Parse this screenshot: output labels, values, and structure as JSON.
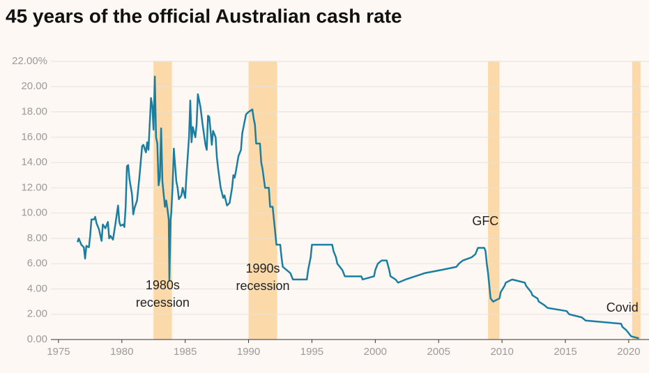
{
  "chart_data": {
    "type": "line",
    "title": "45 years of the official Australian cash rate",
    "color": "#1b7ea1",
    "band_color": "#fbd9a9",
    "grid": true,
    "xlim": [
      1974.4,
      2021.6
    ],
    "ylim": [
      0,
      22
    ],
    "xticks": [
      1975,
      1980,
      1985,
      1990,
      1995,
      2000,
      2005,
      2010,
      2015,
      2020
    ],
    "yticks": [
      {
        "value": 0,
        "label": "0.00"
      },
      {
        "value": 2,
        "label": "2.00"
      },
      {
        "value": 4,
        "label": "4.00"
      },
      {
        "value": 6,
        "label": "6.00"
      },
      {
        "value": 8,
        "label": "8.00"
      },
      {
        "value": 10,
        "label": "10.00"
      },
      {
        "value": 12,
        "label": "12.00"
      },
      {
        "value": 14,
        "label": "14.00"
      },
      {
        "value": 16,
        "label": "16.00"
      },
      {
        "value": 18,
        "label": "18.00"
      },
      {
        "value": 20,
        "label": "20.00"
      },
      {
        "value": 22,
        "label": "22.00%"
      }
    ],
    "shaded_periods": [
      {
        "start": 1982.5,
        "end": 1983.95,
        "label": [
          "1980s",
          "recession"
        ]
      },
      {
        "start": 1990.0,
        "end": 1992.25,
        "label": [
          "1990s",
          "recession"
        ]
      },
      {
        "start": 2008.9,
        "end": 2009.8,
        "label": [
          "GFC"
        ]
      },
      {
        "start": 2020.27,
        "end": 2020.93,
        "label": [
          "Covid"
        ]
      }
    ],
    "x": [
      1976.5,
      1976.6,
      1976.8,
      1977.0,
      1977.1,
      1977.2,
      1977.4,
      1977.5,
      1977.6,
      1977.8,
      1977.9,
      1978.0,
      1978.2,
      1978.4,
      1978.5,
      1978.7,
      1978.9,
      1979.0,
      1979.1,
      1979.3,
      1979.5,
      1979.7,
      1979.8,
      1979.9,
      1980.1,
      1980.2,
      1980.3,
      1980.4,
      1980.5,
      1980.6,
      1980.8,
      1980.9,
      1981.0,
      1981.2,
      1981.4,
      1981.6,
      1981.7,
      1981.9,
      1982.0,
      1982.1,
      1982.3,
      1982.4,
      1982.5,
      1982.6,
      1982.7,
      1982.8,
      1982.9,
      1983.0,
      1983.1,
      1983.2,
      1983.4,
      1983.5,
      1983.6,
      1983.7,
      1983.75,
      1983.85,
      1983.9,
      1984.0,
      1984.1,
      1984.3,
      1984.4,
      1984.5,
      1984.7,
      1984.8,
      1985.0,
      1985.1,
      1985.3,
      1985.4,
      1985.5,
      1985.6,
      1985.8,
      1985.9,
      1986.0,
      1986.2,
      1986.4,
      1986.6,
      1986.7,
      1986.8,
      1986.9,
      1987.1,
      1987.2,
      1987.4,
      1987.5,
      1987.6,
      1987.8,
      1988.0,
      1988.1,
      1988.3,
      1988.5,
      1988.7,
      1988.8,
      1988.9,
      1989.0,
      1989.2,
      1989.4,
      1989.5,
      1989.6,
      1989.8,
      1990.0,
      1990.3,
      1990.4,
      1990.5,
      1990.6,
      1990.9,
      1991.0,
      1991.1,
      1991.3,
      1991.6,
      1991.7,
      1991.9,
      1992.0,
      1992.1,
      1992.2,
      1992.5,
      1992.6,
      1992.7,
      1993.3,
      1993.5,
      1994.6,
      1994.7,
      1994.9,
      1995.0,
      1996.6,
      1996.7,
      1996.9,
      1997.0,
      1997.4,
      1997.6,
      1998.9,
      1999.0,
      1999.9,
      2000.0,
      2000.2,
      2000.5,
      2000.9,
      2001.1,
      2001.2,
      2001.6,
      2001.8,
      2002.4,
      2003.9,
      2005.2,
      2006.4,
      2006.6,
      2006.9,
      2007.6,
      2007.9,
      2008.1,
      2008.6,
      2008.7,
      2008.8,
      2008.9,
      2009.0,
      2009.1,
      2009.3,
      2009.8,
      2009.9,
      2010.2,
      2010.3,
      2010.8,
      2011.8,
      2011.9,
      2012.3,
      2012.4,
      2012.8,
      2012.9,
      2013.3,
      2013.6,
      2015.1,
      2015.3,
      2016.3,
      2016.6,
      2019.4,
      2019.5,
      2019.8,
      2020.2,
      2020.8
    ],
    "values": [
      7.7,
      8.0,
      7.5,
      7.3,
      6.4,
      7.4,
      7.3,
      8.2,
      9.5,
      9.5,
      9.7,
      9.2,
      8.7,
      7.8,
      9.1,
      8.8,
      9.3,
      8.0,
      8.2,
      7.9,
      9.2,
      10.6,
      9.3,
      9.0,
      9.1,
      8.9,
      10.5,
      13.7,
      13.8,
      12.7,
      11.5,
      9.9,
      10.4,
      11.0,
      13.0,
      15.3,
      15.4,
      14.8,
      15.6,
      15.0,
      19.1,
      18.5,
      16.6,
      20.8,
      16.0,
      15.5,
      12.2,
      12.8,
      16.7,
      12.5,
      10.5,
      11.0,
      10.3,
      9.5,
      4.7,
      9.5,
      10.0,
      12.0,
      15.1,
      12.5,
      12.0,
      11.1,
      11.4,
      12.0,
      11.2,
      13.0,
      16.0,
      18.9,
      15.6,
      16.8,
      16.0,
      17.0,
      19.4,
      18.4,
      16.8,
      15.4,
      15.0,
      17.7,
      17.6,
      15.4,
      16.5,
      16.0,
      14.4,
      13.5,
      12.0,
      11.2,
      11.4,
      10.6,
      10.8,
      12.0,
      13.0,
      12.8,
      13.3,
      14.5,
      15.0,
      16.3,
      16.8,
      17.8,
      18.0,
      18.2,
      17.5,
      17.0,
      15.5,
      15.5,
      14.0,
      13.5,
      12.0,
      12.0,
      10.5,
      10.5,
      9.5,
      8.5,
      7.5,
      7.5,
      6.5,
      5.75,
      5.25,
      4.75,
      4.75,
      5.5,
      6.5,
      7.5,
      7.5,
      7.0,
      6.5,
      6.0,
      5.5,
      5.0,
      5.0,
      4.75,
      5.0,
      5.5,
      6.0,
      6.25,
      6.25,
      5.5,
      5.0,
      4.75,
      4.5,
      4.75,
      5.25,
      5.5,
      5.75,
      6.0,
      6.25,
      6.5,
      6.75,
      7.25,
      7.25,
      7.0,
      6.0,
      5.25,
      4.25,
      3.25,
      3.0,
      3.25,
      3.75,
      4.25,
      4.5,
      4.75,
      4.5,
      4.25,
      3.75,
      3.5,
      3.25,
      3.0,
      2.75,
      2.5,
      2.25,
      2.0,
      1.75,
      1.5,
      1.25,
      1.0,
      0.75,
      0.25,
      0.1
    ]
  }
}
